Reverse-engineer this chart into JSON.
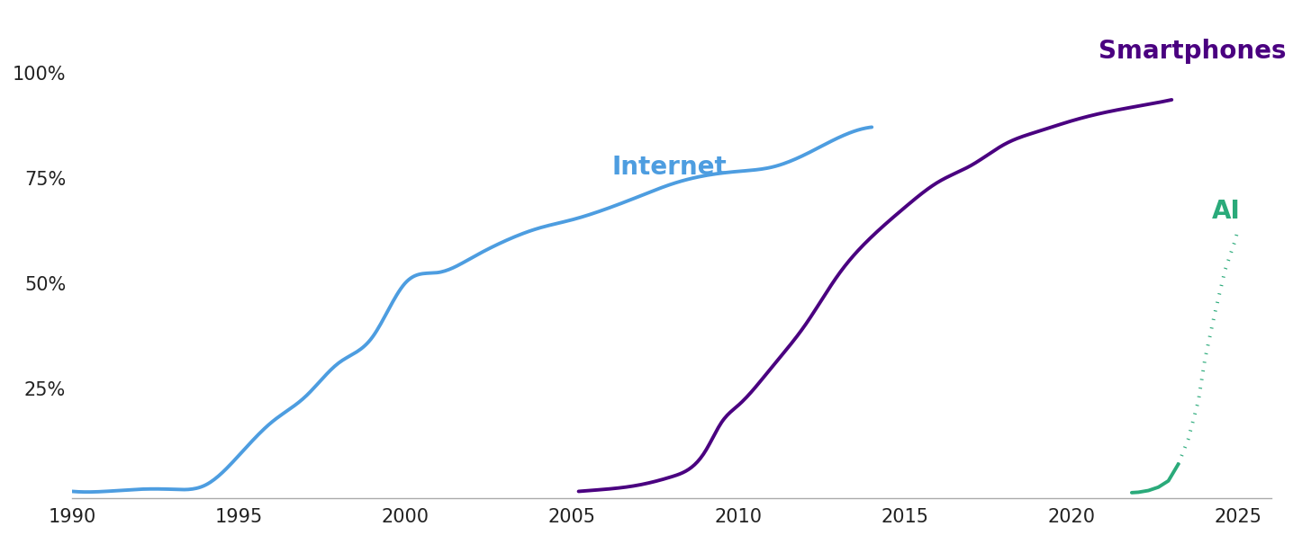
{
  "background_color": "#ffffff",
  "xlim": [
    1990,
    2026
  ],
  "ylim": [
    -0.01,
    1.08
  ],
  "yticks": [
    0.0,
    0.25,
    0.5,
    0.75,
    1.0
  ],
  "ytick_labels": [
    "",
    "25%",
    "50%",
    "75%",
    "100%"
  ],
  "xticks": [
    1990,
    1995,
    2000,
    2005,
    2010,
    2015,
    2020,
    2025
  ],
  "internet_color": "#4d9de0",
  "smartphone_color": "#4a0080",
  "ai_color": "#2aaa7a",
  "internet_label": "Internet",
  "smartphone_label": "Smartphones",
  "ai_label": "AI",
  "internet_x": [
    1990,
    1991,
    1992,
    1993,
    1994,
    1995,
    1996,
    1997,
    1998,
    1999,
    2000,
    2001,
    2002,
    2003,
    2004,
    2005,
    2006,
    2007,
    2008,
    2009,
    2010,
    2011,
    2012,
    2013,
    2014
  ],
  "internet_y": [
    0.005,
    0.005,
    0.01,
    0.01,
    0.02,
    0.09,
    0.17,
    0.23,
    0.31,
    0.37,
    0.5,
    0.525,
    0.56,
    0.6,
    0.63,
    0.65,
    0.675,
    0.705,
    0.735,
    0.755,
    0.765,
    0.775,
    0.805,
    0.845,
    0.87
  ],
  "smartphone_x": [
    2005.2,
    2006,
    2007,
    2008,
    2009,
    2009.5,
    2010,
    2011,
    2012,
    2013,
    2014,
    2015,
    2016,
    2017,
    2018,
    2019,
    2020,
    2021,
    2022,
    2023
  ],
  "smartphone_y": [
    0.005,
    0.01,
    0.02,
    0.04,
    0.1,
    0.17,
    0.21,
    0.3,
    0.4,
    0.52,
    0.61,
    0.68,
    0.74,
    0.78,
    0.83,
    0.86,
    0.885,
    0.905,
    0.92,
    0.935
  ],
  "ai_solid_x": [
    2021.8,
    2022.0,
    2022.3,
    2022.6,
    2022.9,
    2023.2
  ],
  "ai_solid_y": [
    0.002,
    0.003,
    0.007,
    0.015,
    0.03,
    0.07
  ],
  "ai_dotted_x": [
    2023.2,
    2023.5,
    2023.8,
    2024.0,
    2024.3,
    2024.6,
    2024.9,
    2025.0
  ],
  "ai_dotted_y": [
    0.07,
    0.13,
    0.22,
    0.32,
    0.43,
    0.53,
    0.6,
    0.63
  ],
  "line_width": 2.8
}
